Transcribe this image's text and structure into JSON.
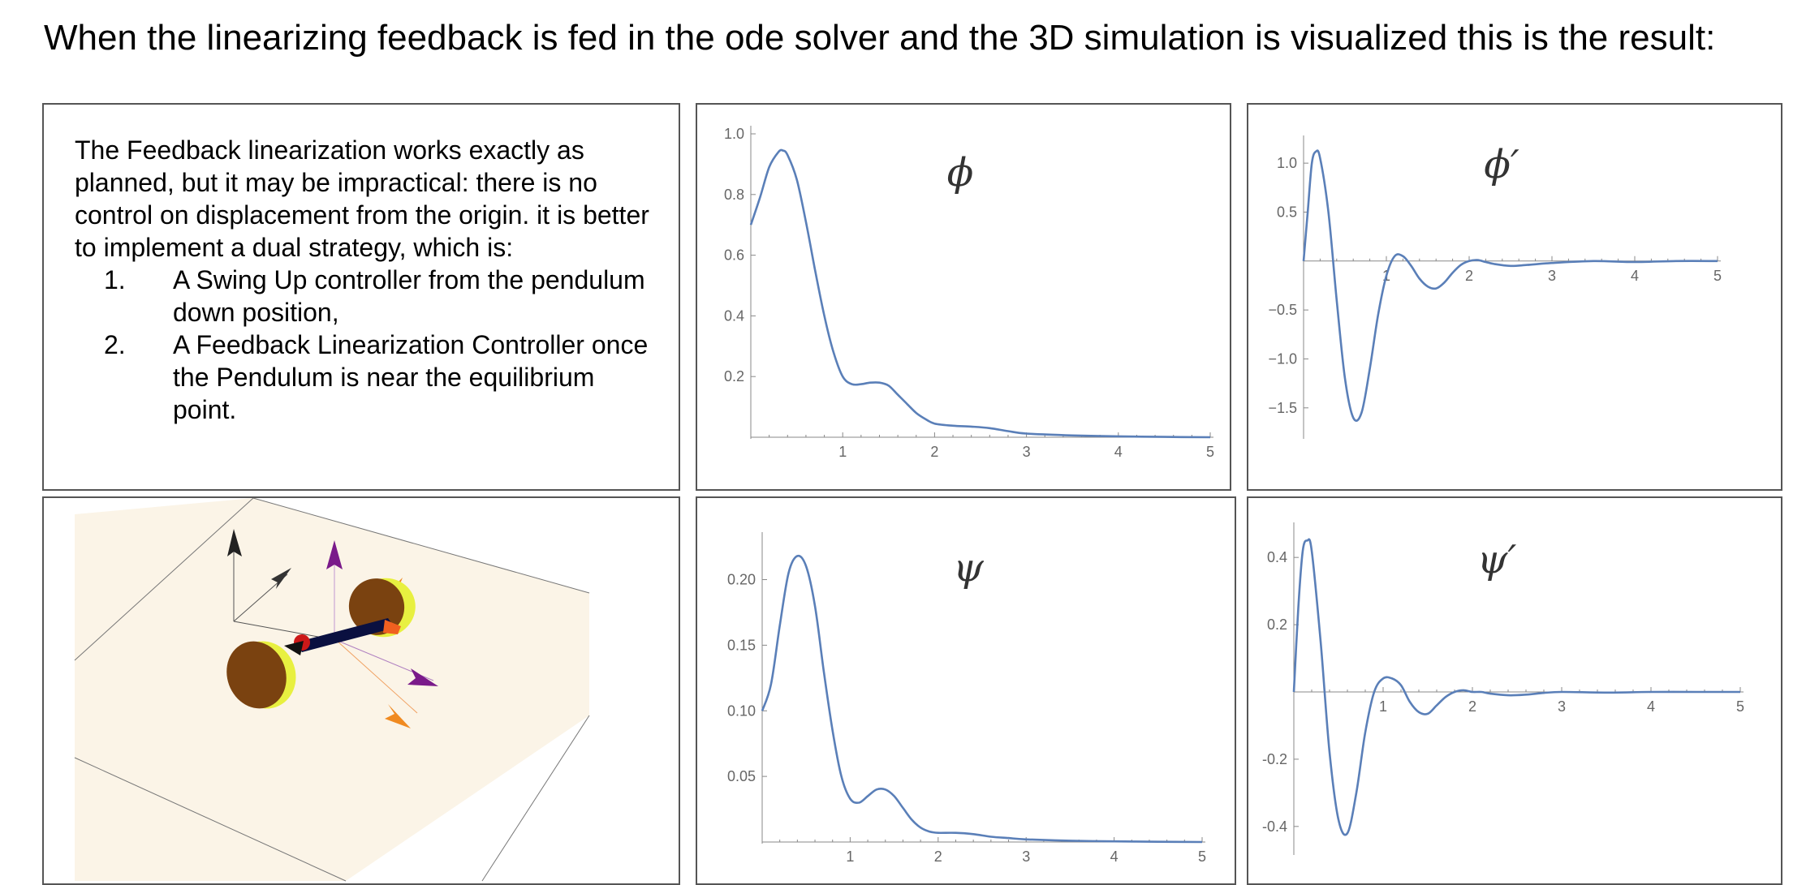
{
  "heading": "When the linearizing feedback is fed in the ode solver and the 3D simulation is visualized this is the result:",
  "description": {
    "intro": "The Feedback linearization works exactly as planned, but it may be impractical: there is no control on displacement from the origin. it is better to implement a dual strategy, which is:",
    "items": [
      {
        "num": "1.",
        "text": "A Swing Up controller from the pendulum down position,"
      },
      {
        "num": "2.",
        "text": "A Feedback Linearization Controller once the Pendulum is near the equilibrium point."
      }
    ]
  },
  "colors": {
    "line": "#5a7fb8",
    "axis": "#888888",
    "ground": "#fbf4e7",
    "wheel_face": "#7a4210",
    "wheel_rim": "#e8f040",
    "arrow_purple": "#7a1a8a",
    "arrow_orange": "#f08a20",
    "arrow_black": "#222222"
  },
  "chart_data": [
    {
      "id": "phi",
      "type": "line",
      "title": "ϕ",
      "xlim": [
        0,
        5
      ],
      "ylim": [
        0,
        1.0
      ],
      "xticks": [
        1,
        2,
        3,
        4,
        5
      ],
      "xtick_labels": [
        "1",
        "2",
        "3",
        "4",
        "5"
      ],
      "yticks": [
        0.2,
        0.4,
        0.6,
        0.8,
        1.0
      ],
      "ytick_labels": [
        "0.2",
        "0.4",
        "0.6",
        "0.8",
        "1.0"
      ],
      "x": [
        0,
        0.1,
        0.2,
        0.3,
        0.35,
        0.4,
        0.5,
        0.6,
        0.7,
        0.8,
        0.9,
        1.0,
        1.1,
        1.2,
        1.3,
        1.4,
        1.5,
        1.6,
        1.7,
        1.8,
        1.9,
        2.0,
        2.2,
        2.4,
        2.6,
        2.8,
        3.0,
        3.5,
        4.0,
        4.5,
        5.0
      ],
      "y": [
        0.7,
        0.79,
        0.89,
        0.94,
        0.945,
        0.93,
        0.85,
        0.71,
        0.55,
        0.4,
        0.28,
        0.2,
        0.175,
        0.175,
        0.18,
        0.18,
        0.17,
        0.14,
        0.11,
        0.08,
        0.06,
        0.045,
        0.038,
        0.035,
        0.03,
        0.02,
        0.012,
        0.006,
        0.003,
        0.001,
        0.0
      ]
    },
    {
      "id": "phi_dot",
      "type": "line",
      "title": "ϕ′",
      "xlim": [
        0,
        5
      ],
      "ylim": [
        -1.8,
        1.2
      ],
      "xticks": [
        1,
        2,
        3,
        4,
        5
      ],
      "xtick_labels": [
        "1",
        "2",
        "3",
        "4",
        "5"
      ],
      "yticks": [
        -1.5,
        -1.0,
        -0.5,
        0.5,
        1.0
      ],
      "ytick_labels": [
        "−1.5",
        "−1.0",
        "−0.5",
        "0.5",
        "1.0"
      ],
      "x": [
        0,
        0.05,
        0.1,
        0.15,
        0.2,
        0.3,
        0.4,
        0.5,
        0.6,
        0.7,
        0.8,
        0.9,
        1.0,
        1.1,
        1.2,
        1.3,
        1.4,
        1.5,
        1.6,
        1.7,
        1.8,
        1.9,
        2.0,
        2.1,
        2.2,
        2.3,
        2.5,
        2.7,
        3.0,
        3.5,
        4.0,
        4.5,
        5.0
      ],
      "y": [
        0.0,
        0.5,
        1.0,
        1.12,
        1.05,
        0.5,
        -0.4,
        -1.2,
        -1.6,
        -1.55,
        -1.1,
        -0.55,
        -0.15,
        0.05,
        0.05,
        -0.05,
        -0.18,
        -0.26,
        -0.28,
        -0.22,
        -0.12,
        -0.04,
        0.0,
        0.01,
        -0.01,
        -0.03,
        -0.05,
        -0.04,
        -0.02,
        0.0,
        -0.01,
        0.0,
        0.0
      ]
    },
    {
      "id": "psi",
      "type": "line",
      "title": "ψ",
      "xlim": [
        0,
        5
      ],
      "ylim": [
        0,
        0.23
      ],
      "xticks": [
        1,
        2,
        3,
        4,
        5
      ],
      "xtick_labels": [
        "1",
        "2",
        "3",
        "4",
        "5"
      ],
      "yticks": [
        0.05,
        0.1,
        0.15,
        0.2
      ],
      "ytick_labels": [
        "0.05",
        "0.10",
        "0.15",
        "0.20"
      ],
      "x": [
        0,
        0.1,
        0.2,
        0.3,
        0.4,
        0.5,
        0.6,
        0.7,
        0.8,
        0.9,
        1.0,
        1.1,
        1.2,
        1.3,
        1.4,
        1.5,
        1.6,
        1.7,
        1.8,
        1.9,
        2.0,
        2.2,
        2.4,
        2.6,
        2.8,
        3.0,
        3.5,
        4.0,
        4.5,
        5.0
      ],
      "y": [
        0.1,
        0.12,
        0.165,
        0.205,
        0.218,
        0.21,
        0.18,
        0.13,
        0.085,
        0.05,
        0.033,
        0.03,
        0.035,
        0.04,
        0.04,
        0.035,
        0.026,
        0.017,
        0.011,
        0.008,
        0.007,
        0.007,
        0.006,
        0.004,
        0.003,
        0.002,
        0.001,
        0.0005,
        0.0002,
        0.0
      ]
    },
    {
      "id": "psi_dot",
      "type": "line",
      "title": "ψ′",
      "xlim": [
        0,
        5
      ],
      "ylim": [
        -0.48,
        0.48
      ],
      "xticks": [
        1,
        2,
        3,
        4,
        5
      ],
      "xtick_labels": [
        "1",
        "2",
        "3",
        "4",
        "5"
      ],
      "yticks": [
        -0.4,
        -0.2,
        0.2,
        0.4
      ],
      "ytick_labels": [
        "-0.4",
        "-0.2",
        "0.2",
        "0.4"
      ],
      "x": [
        0,
        0.05,
        0.1,
        0.15,
        0.2,
        0.3,
        0.4,
        0.5,
        0.6,
        0.7,
        0.8,
        0.9,
        1.0,
        1.1,
        1.2,
        1.3,
        1.4,
        1.5,
        1.6,
        1.7,
        1.8,
        1.9,
        2.0,
        2.1,
        2.2,
        2.4,
        2.6,
        2.8,
        3.0,
        3.5,
        4.0,
        4.5,
        5.0
      ],
      "y": [
        0.0,
        0.25,
        0.42,
        0.45,
        0.42,
        0.15,
        -0.18,
        -0.38,
        -0.42,
        -0.3,
        -0.12,
        0.0,
        0.04,
        0.04,
        0.02,
        -0.03,
        -0.06,
        -0.065,
        -0.04,
        -0.015,
        0.0,
        0.005,
        0.0,
        0.0,
        -0.005,
        -0.01,
        -0.008,
        -0.003,
        0.0,
        -0.002,
        0.0,
        0.0,
        0.0
      ]
    }
  ]
}
